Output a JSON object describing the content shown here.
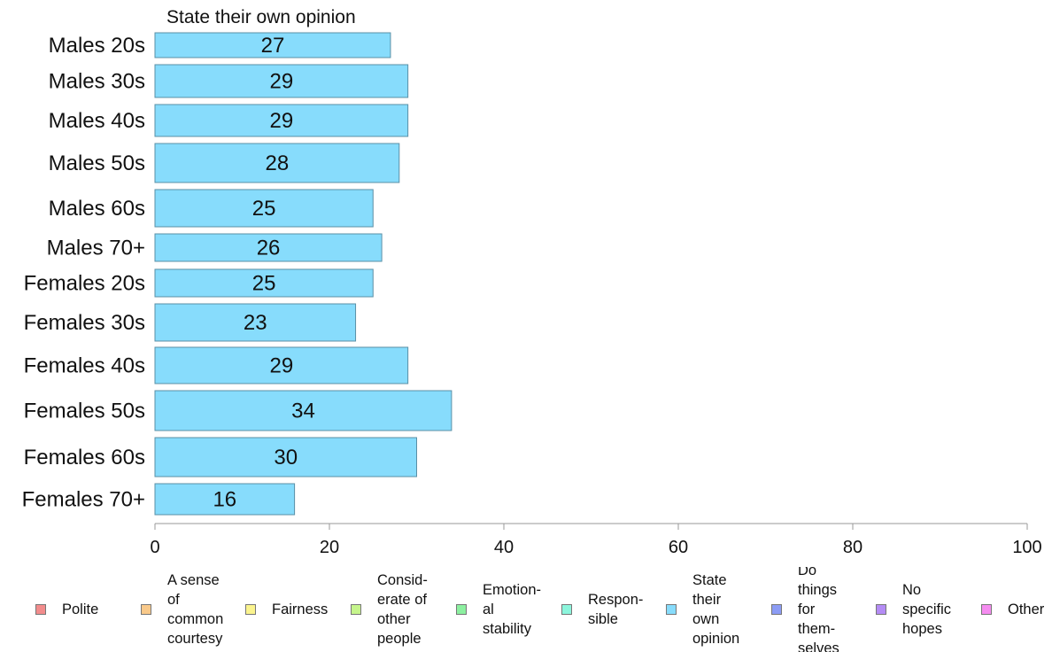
{
  "chart_data": {
    "type": "bar",
    "orientation": "horizontal",
    "title": "State their own opinion",
    "categories": [
      "Males 20s",
      "Males 30s",
      "Males 40s",
      "Males 50s",
      "Males 60s",
      "Males 70+",
      "Females 20s",
      "Females 30s",
      "Females 40s",
      "Females 50s",
      "Females 60s",
      "Females 70+"
    ],
    "series": [
      {
        "name": "State their own opinion",
        "values": [
          27,
          29,
          29,
          28,
          25,
          26,
          25,
          23,
          29,
          34,
          30,
          16
        ],
        "color": "#87dcfc"
      }
    ],
    "xlim": [
      0,
      100
    ],
    "xticks": [
      0,
      20,
      40,
      60,
      80,
      100
    ],
    "grid": false,
    "legend_position": "bottom"
  },
  "legend": [
    {
      "label": "Polite",
      "color": "#f28c8c"
    },
    {
      "label": "A sense\nof\ncommon\ncourtesy",
      "color": "#f9c98a"
    },
    {
      "label": "Fairness",
      "color": "#fbf48e"
    },
    {
      "label": "Consid-\nerate of\nother\npeople",
      "color": "#c6f58c"
    },
    {
      "label": "Emotion-\nal\nstability",
      "color": "#8cf0a0"
    },
    {
      "label": "Respon-\nsible",
      "color": "#8cf5dc"
    },
    {
      "label": "State\ntheir\nown\nopinion",
      "color": "#87dcfc"
    },
    {
      "label": "Do\nthings\nfor\nthem-\nselves",
      "color": "#8c9cf5"
    },
    {
      "label": "No\nspecific\nhopes",
      "color": "#b48cf5"
    },
    {
      "label": "Other",
      "color": "#f58cf0"
    }
  ]
}
